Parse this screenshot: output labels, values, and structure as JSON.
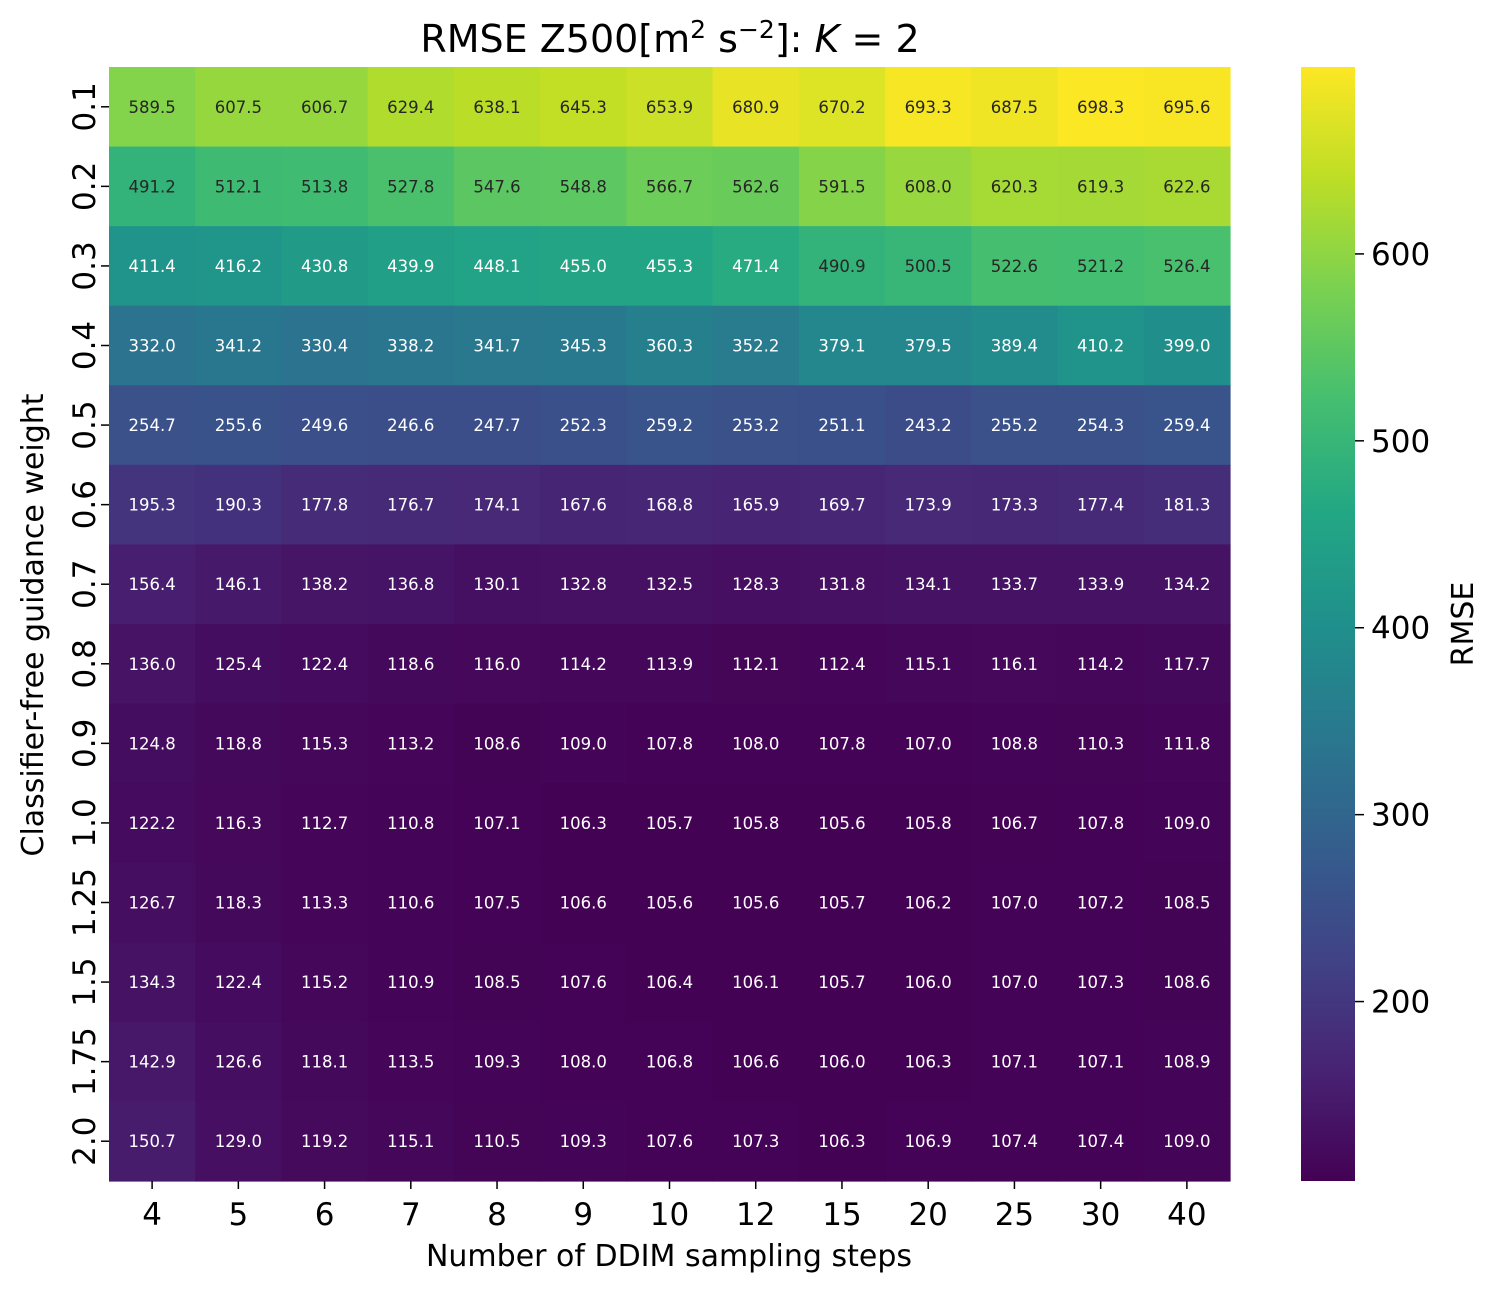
{
  "chart_data": {
    "type": "heatmap",
    "title": {
      "prefix": "RMSE Z500[m",
      "sup1": "2",
      "middle": " s",
      "sup2": "−2",
      "suffix": "]: ",
      "var": "K",
      "eq": " = 2"
    },
    "xlabel": "Number of DDIM sampling steps",
    "ylabel": "Classifier-free guidance weight",
    "colorbar_label": "RMSE",
    "colormap": "viridis",
    "color_range": [
      104,
      700
    ],
    "colorbar_ticks": [
      "200",
      "300",
      "400",
      "500",
      "600"
    ],
    "colorbar_tick_values": [
      200,
      300,
      400,
      500,
      600
    ],
    "x_categories": [
      "4",
      "5",
      "6",
      "7",
      "8",
      "9",
      "10",
      "12",
      "15",
      "20",
      "25",
      "30",
      "40"
    ],
    "y_categories": [
      "0.1",
      "0.2",
      "0.3",
      "0.4",
      "0.5",
      "0.6",
      "0.7",
      "0.8",
      "0.9",
      "1.0",
      "1.25",
      "1.5",
      "1.75",
      "2.0"
    ],
    "values": [
      [
        "589.5",
        "607.5",
        "606.7",
        "629.4",
        "638.1",
        "645.3",
        "653.9",
        "680.9",
        "670.2",
        "693.3",
        "687.5",
        "698.3",
        "695.6"
      ],
      [
        "491.2",
        "512.1",
        "513.8",
        "527.8",
        "547.6",
        "548.8",
        "566.7",
        "562.6",
        "591.5",
        "608.0",
        "620.3",
        "619.3",
        "622.6"
      ],
      [
        "411.4",
        "416.2",
        "430.8",
        "439.9",
        "448.1",
        "455.0",
        "455.3",
        "471.4",
        "490.9",
        "500.5",
        "522.6",
        "521.2",
        "526.4"
      ],
      [
        "332.0",
        "341.2",
        "330.4",
        "338.2",
        "341.7",
        "345.3",
        "360.3",
        "352.2",
        "379.1",
        "379.5",
        "389.4",
        "410.2",
        "399.0"
      ],
      [
        "254.7",
        "255.6",
        "249.6",
        "246.6",
        "247.7",
        "252.3",
        "259.2",
        "253.2",
        "251.1",
        "243.2",
        "255.2",
        "254.3",
        "259.4"
      ],
      [
        "195.3",
        "190.3",
        "177.8",
        "176.7",
        "174.1",
        "167.6",
        "168.8",
        "165.9",
        "169.7",
        "173.9",
        "173.3",
        "177.4",
        "181.3"
      ],
      [
        "156.4",
        "146.1",
        "138.2",
        "136.8",
        "130.1",
        "132.8",
        "132.5",
        "128.3",
        "131.8",
        "134.1",
        "133.7",
        "133.9",
        "134.2"
      ],
      [
        "136.0",
        "125.4",
        "122.4",
        "118.6",
        "116.0",
        "114.2",
        "113.9",
        "112.1",
        "112.4",
        "115.1",
        "116.1",
        "114.2",
        "117.7"
      ],
      [
        "124.8",
        "118.8",
        "115.3",
        "113.2",
        "108.6",
        "109.0",
        "107.8",
        "108.0",
        "107.8",
        "107.0",
        "108.8",
        "110.3",
        "111.8"
      ],
      [
        "122.2",
        "116.3",
        "112.7",
        "110.8",
        "107.1",
        "106.3",
        "105.7",
        "105.8",
        "105.6",
        "105.8",
        "106.7",
        "107.8",
        "109.0"
      ],
      [
        "126.7",
        "118.3",
        "113.3",
        "110.6",
        "107.5",
        "106.6",
        "105.6",
        "105.6",
        "105.7",
        "106.2",
        "107.0",
        "107.2",
        "108.5"
      ],
      [
        "134.3",
        "122.4",
        "115.2",
        "110.9",
        "108.5",
        "107.6",
        "106.4",
        "106.1",
        "105.7",
        "106.0",
        "107.0",
        "107.3",
        "108.6"
      ],
      [
        "142.9",
        "126.6",
        "118.1",
        "113.5",
        "109.3",
        "108.0",
        "106.8",
        "106.6",
        "106.0",
        "106.3",
        "107.1",
        "107.1",
        "108.9"
      ],
      [
        "150.7",
        "129.0",
        "119.2",
        "115.1",
        "110.5",
        "109.3",
        "107.6",
        "107.3",
        "106.3",
        "106.9",
        "107.4",
        "107.4",
        "109.0"
      ]
    ]
  }
}
